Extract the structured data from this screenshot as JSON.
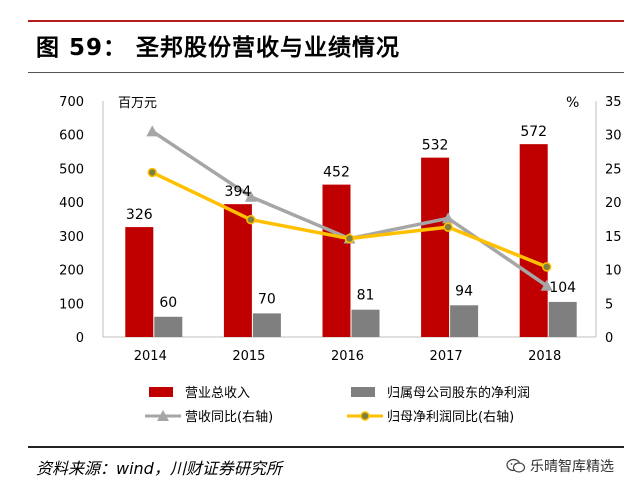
{
  "header": {
    "title": "图 59：   圣邦股份营收与业绩情况"
  },
  "chart_data": {
    "type": "bar",
    "categories": [
      "2014",
      "2015",
      "2016",
      "2017",
      "2018"
    ],
    "left_axis_unit": "百万元",
    "right_axis_unit": "%",
    "ylim_left": [
      0,
      700
    ],
    "yticks_left": [
      "0",
      "100",
      "200",
      "300",
      "400",
      "500",
      "600",
      "700"
    ],
    "ylim_right": [
      0,
      35
    ],
    "yticks_right": [
      "0",
      "5",
      "10",
      "15",
      "20",
      "25",
      "30",
      "35"
    ],
    "series": [
      {
        "name": "营业总收入",
        "kind": "bar",
        "axis": "left",
        "color": "#c00000",
        "values": [
          326,
          394,
          452,
          532,
          572
        ],
        "labels": [
          "326",
          "394",
          "452",
          "532",
          "572"
        ]
      },
      {
        "name": "归属母公司股东的净利润",
        "kind": "bar",
        "axis": "left",
        "color": "#7f7f7f",
        "values": [
          60,
          70,
          81,
          94,
          104
        ],
        "labels": [
          "60",
          "70",
          "81",
          "94",
          "104"
        ]
      },
      {
        "name": "营收同比(右轴)",
        "kind": "line",
        "axis": "right",
        "color": "#a6a6a6",
        "marker": "triangle",
        "values": [
          30.5,
          20.8,
          14.6,
          17.6,
          7.6
        ]
      },
      {
        "name": "归母净利润同比(右轴)",
        "kind": "line",
        "axis": "right",
        "color": "#ffc000",
        "marker": "circle",
        "values": [
          24.4,
          17.4,
          14.6,
          16.3,
          10.4
        ]
      }
    ]
  },
  "footer": {
    "source": "资料来源：wind，川财证券研究所",
    "watermark": "乐晴智库精选",
    "watermark_icon": "wechat-icon"
  }
}
